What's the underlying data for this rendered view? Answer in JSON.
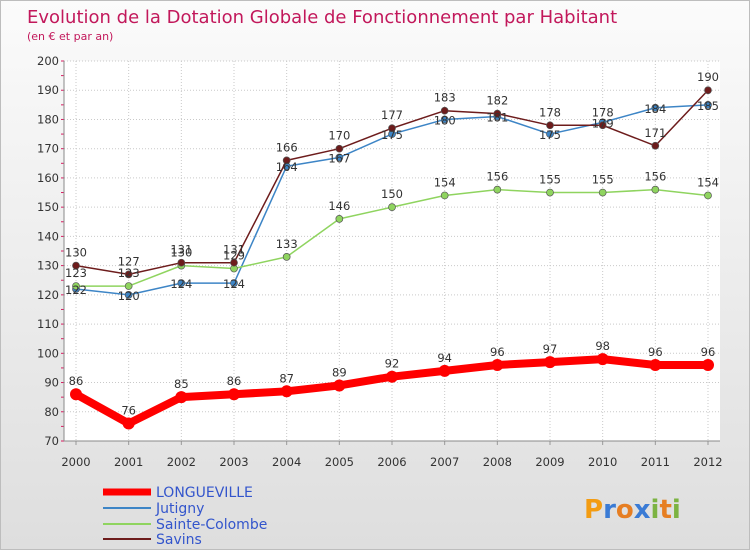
{
  "chart_data": {
    "type": "line",
    "title": "Evolution de la Dotation Globale de Fonctionnement par Habitant",
    "subtitle": "(en € et par an)",
    "xlabel": "",
    "ylabel": "",
    "x": [
      "2000",
      "2001",
      "2002",
      "2003",
      "2004",
      "2005",
      "2006",
      "2007",
      "2008",
      "2009",
      "2010",
      "2011",
      "2012"
    ],
    "ylim": [
      70,
      200
    ],
    "yticks": [
      "70",
      "80",
      "90",
      "100",
      "110",
      "120",
      "130",
      "140",
      "150",
      "160",
      "170",
      "180",
      "190",
      "200"
    ],
    "grid": true,
    "series": [
      {
        "name": "LONGUEVILLE",
        "color": "#ff0000",
        "values": [
          86,
          76,
          85,
          86,
          87,
          89,
          92,
          94,
          96,
          97,
          98,
          96,
          96
        ],
        "labels": [
          "86",
          "76",
          "85",
          "86",
          "87",
          "89",
          "92",
          "94",
          "96",
          "97",
          "98",
          "96",
          "96"
        ]
      },
      {
        "name": "Jutigny",
        "color": "#3d85c6",
        "values": [
          122,
          120,
          124,
          124,
          164,
          167,
          175,
          180,
          181,
          175,
          179,
          184,
          185
        ],
        "labels": [
          "122",
          "120",
          "124",
          "124",
          "164",
          "167",
          "175",
          "180",
          "181",
          "175",
          "179",
          "184",
          "185"
        ]
      },
      {
        "name": "Sainte-Colombe",
        "color": "#8fd45f",
        "values": [
          123,
          123,
          130,
          129,
          133,
          146,
          150,
          154,
          156,
          155,
          155,
          156,
          154
        ],
        "labels": [
          "123",
          "123",
          "130",
          "129",
          "133",
          "146",
          "150",
          "154",
          "156",
          "155",
          "155",
          "156",
          "154"
        ]
      },
      {
        "name": "Savins",
        "color": "#6d1c1c",
        "values": [
          130,
          127,
          131,
          131,
          166,
          170,
          177,
          183,
          182,
          178,
          178,
          171,
          190
        ],
        "labels": [
          "130",
          "127",
          "131",
          "131",
          "166",
          "170",
          "177",
          "183",
          "182",
          "178",
          "178",
          "171",
          "190"
        ]
      }
    ]
  },
  "branding": {
    "logo_text": "Proxiti"
  }
}
